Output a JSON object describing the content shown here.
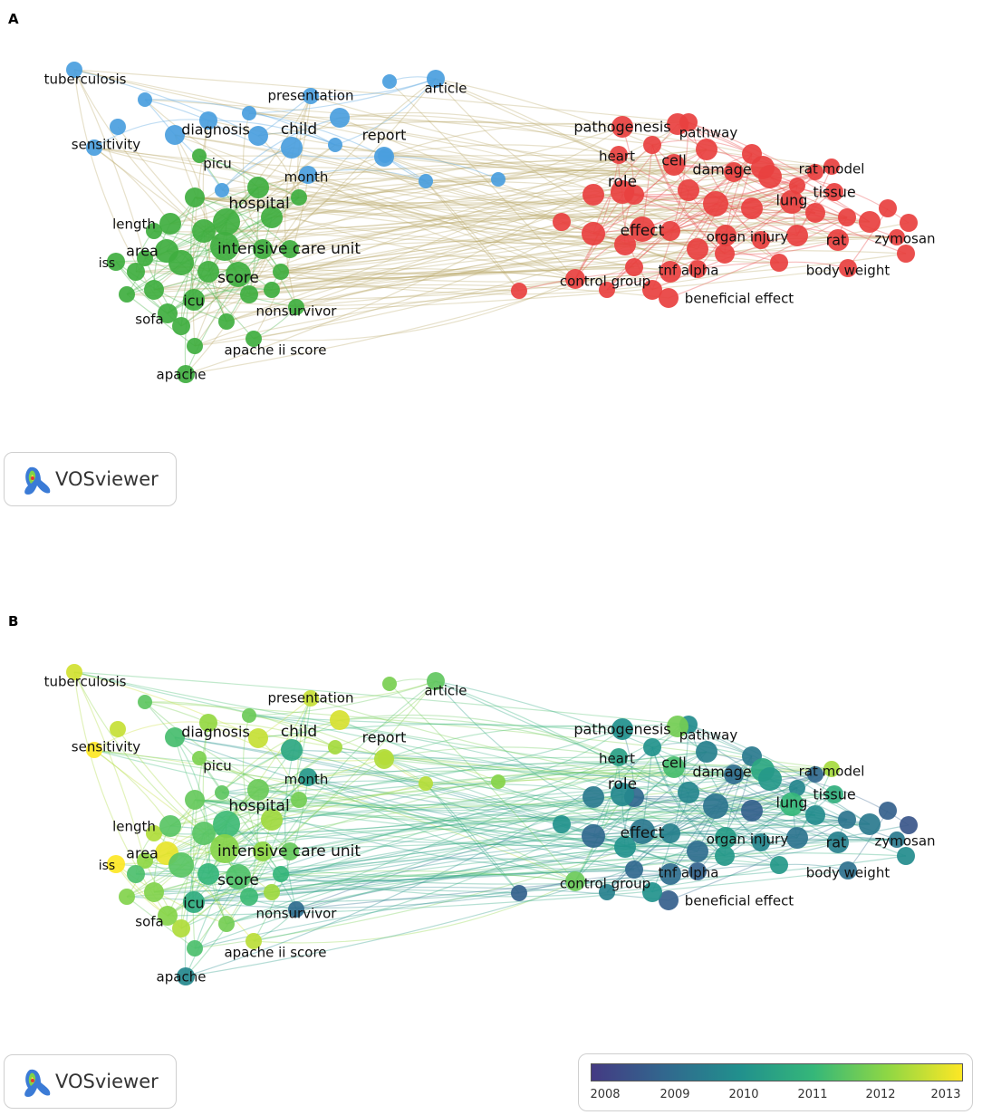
{
  "panels": [
    {
      "letter": "A",
      "coloring": "cluster"
    },
    {
      "letter": "B",
      "coloring": "overlay"
    }
  ],
  "logo": {
    "text": "VOSviewer",
    "icon": "vosviewer-logo-icon"
  },
  "legend": {
    "ticks": [
      "2008",
      "2009",
      "2010",
      "2011",
      "2012",
      "2013"
    ],
    "colors": [
      "#443a83",
      "#31688e",
      "#21908d",
      "#35b779",
      "#8fd744",
      "#fde725"
    ]
  },
  "colors": {
    "cluster1": "#e8403f",
    "cluster2": "#3fae3f",
    "cluster3": "#4a9ede"
  },
  "nodes": [
    {
      "label": "tuberculosis",
      "cluster": 3,
      "year": 2012.6
    },
    {
      "label": "sensitivity",
      "cluster": 3,
      "year": 2013.0
    },
    {
      "label": "diagnosis",
      "cluster": 3,
      "year": 2011.2
    },
    {
      "label": "presentation",
      "cluster": 3,
      "year": 2012.5
    },
    {
      "label": "child",
      "cluster": 3,
      "year": 2010.6
    },
    {
      "label": "report",
      "cluster": 3,
      "year": 2012.3
    },
    {
      "label": "article",
      "cluster": 3,
      "year": 2011.5
    },
    {
      "label": "picu",
      "cluster": 2,
      "year": 2011.8
    },
    {
      "label": "month",
      "cluster": 3,
      "year": 2010.2
    },
    {
      "label": "hospital",
      "cluster": 2,
      "year": 2011.6
    },
    {
      "label": "length",
      "cluster": 2,
      "year": 2011.4
    },
    {
      "label": "area",
      "cluster": 2,
      "year": 2012.8
    },
    {
      "label": "iss",
      "cluster": 2,
      "year": 2013.0
    },
    {
      "label": "intensive care unit",
      "cluster": 2,
      "year": 2011.9
    },
    {
      "label": "score",
      "cluster": 2,
      "year": 2011.3
    },
    {
      "label": "icu",
      "cluster": 2,
      "year": 2010.7
    },
    {
      "label": "sofa",
      "cluster": 2,
      "year": 2011.9
    },
    {
      "label": "nonsurvivor",
      "cluster": 2,
      "year": 2009.1
    },
    {
      "label": "apache ii score",
      "cluster": 2,
      "year": 2012.4
    },
    {
      "label": "apache",
      "cluster": 2,
      "year": 2009.8
    },
    {
      "label": "pathogenesis",
      "cluster": 1,
      "year": 2010.0
    },
    {
      "label": "pathway",
      "cluster": 1,
      "year": 2011.7
    },
    {
      "label": "heart",
      "cluster": 1,
      "year": 2010.4
    },
    {
      "label": "cell",
      "cluster": 1,
      "year": 2011.2
    },
    {
      "label": "damage",
      "cluster": 1,
      "year": 2010.6
    },
    {
      "label": "rat model",
      "cluster": 1,
      "year": 2012.2
    },
    {
      "label": "role",
      "cluster": 1,
      "year": 2009.8
    },
    {
      "label": "lung",
      "cluster": 1,
      "year": 2011.0
    },
    {
      "label": "tissue",
      "cluster": 1,
      "year": 2010.8
    },
    {
      "label": "effect",
      "cluster": 1,
      "year": 2009.4
    },
    {
      "label": "organ injury",
      "cluster": 1,
      "year": 2010.3
    },
    {
      "label": "rat",
      "cluster": 1,
      "year": 2009.6
    },
    {
      "label": "zymosan",
      "cluster": 1,
      "year": 2008.6
    },
    {
      "label": "tnf alpha",
      "cluster": 1,
      "year": 2008.9
    },
    {
      "label": "body weight",
      "cluster": 1,
      "year": 2009.2
    },
    {
      "label": "control group",
      "cluster": 1,
      "year": 2011.6
    },
    {
      "label": "beneficial effect",
      "cluster": 1,
      "year": 2008.8
    }
  ]
}
